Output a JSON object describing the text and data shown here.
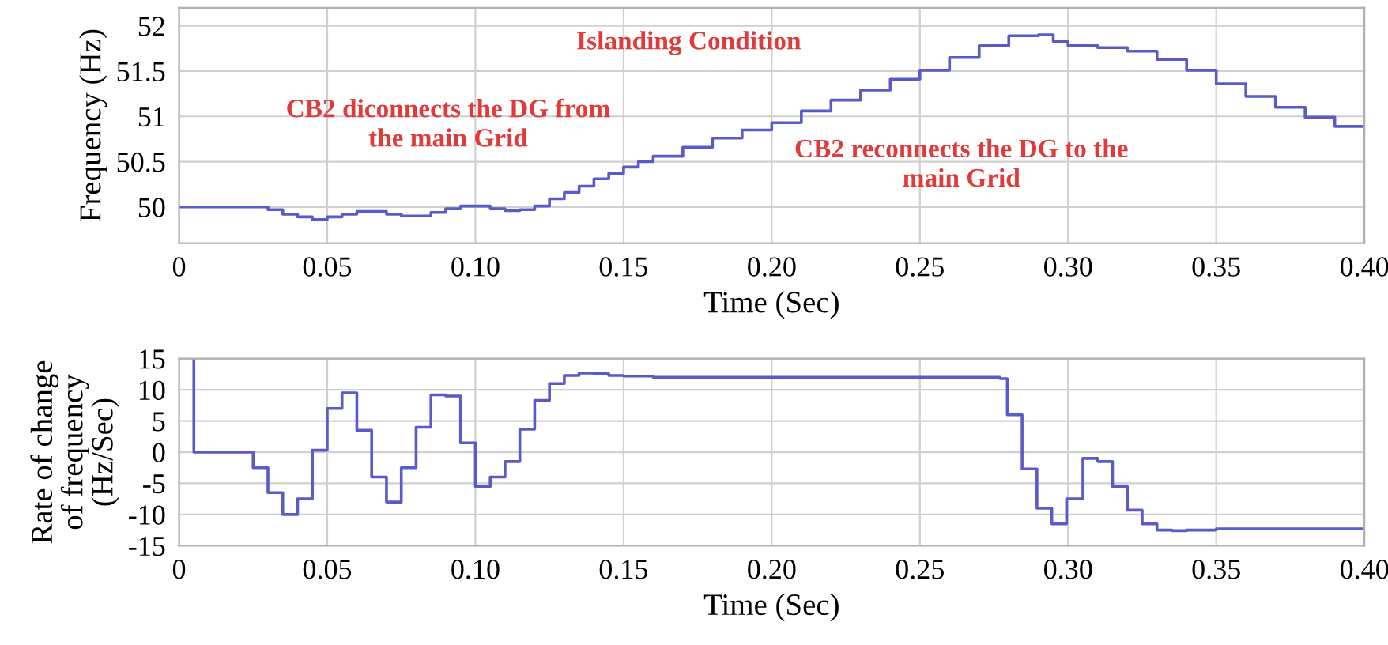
{
  "chart_data": [
    {
      "type": "step",
      "xlabel": "Time (Sec)",
      "ylabel": "Frequency (Hz)",
      "annotations": [
        "Islanding Condition",
        "CB2 diconnects the DG from\nthe main Grid",
        "CB2 reconnects the DG to the\nmain Grid"
      ],
      "series": [
        {
          "color": "#5a5ac8",
          "x": [
            0,
            0.025,
            0.03,
            0.035,
            0.04,
            0.045,
            0.05,
            0.055,
            0.06,
            0.065,
            0.07,
            0.075,
            0.08,
            0.085,
            0.09,
            0.095,
            0.1,
            0.105,
            0.11,
            0.115,
            0.12,
            0.125,
            0.13,
            0.135,
            0.14,
            0.145,
            0.15,
            0.155,
            0.16,
            0.17,
            0.18,
            0.19,
            0.2,
            0.21,
            0.22,
            0.23,
            0.24,
            0.25,
            0.26,
            0.27,
            0.28,
            0.29,
            0.295,
            0.3,
            0.31,
            0.32,
            0.33,
            0.34,
            0.35,
            0.36,
            0.37,
            0.38,
            0.39,
            0.4
          ],
          "values": [
            50.0,
            50.0,
            49.97,
            49.92,
            49.89,
            49.86,
            49.89,
            49.92,
            49.95,
            49.95,
            49.92,
            49.9,
            49.9,
            49.94,
            49.98,
            50.01,
            50.01,
            49.98,
            49.96,
            49.97,
            50.01,
            50.09,
            50.16,
            50.23,
            50.31,
            50.37,
            50.44,
            50.5,
            50.56,
            50.66,
            50.76,
            50.85,
            50.93,
            51.06,
            51.18,
            51.29,
            51.41,
            51.51,
            51.65,
            51.78,
            51.89,
            51.9,
            51.83,
            51.78,
            51.76,
            51.72,
            51.63,
            51.51,
            51.36,
            51.22,
            51.1,
            50.99,
            50.89,
            50.79
          ]
        }
      ],
      "xlim": [
        0,
        0.4
      ],
      "xticks": [
        0,
        0.05,
        {
          "value": 0.1,
          "label": "0.10"
        },
        0.15,
        {
          "value": 0.2,
          "label": "0.20"
        },
        0.25,
        {
          "value": 0.3,
          "label": "0.30"
        },
        0.35,
        {
          "value": 0.4,
          "label": "0.40"
        }
      ],
      "ylim": [
        49.6,
        52.2
      ],
      "yticks": [
        50,
        50.5,
        51,
        51.5,
        52
      ],
      "grid": true
    },
    {
      "type": "step",
      "xlabel": "Time (Sec)",
      "ylabel": "Rate of change\nof frequency\n(Hz/Sec)",
      "series": [
        {
          "color": "#5a5ac8",
          "x": [
            0.005,
            0.005,
            0.025,
            0.03,
            0.035,
            0.04,
            0.045,
            0.05,
            0.055,
            0.06,
            0.065,
            0.07,
            0.075,
            0.08,
            0.085,
            0.09,
            0.095,
            0.1,
            0.105,
            0.11,
            0.115,
            0.12,
            0.125,
            0.13,
            0.135,
            0.14,
            0.145,
            0.15,
            0.16,
            0.277,
            0.2795,
            0.2845,
            0.2895,
            0.2945,
            0.2995,
            0.305,
            0.31,
            0.315,
            0.32,
            0.325,
            0.33,
            0.335,
            0.34,
            0.35,
            0.4
          ],
          "values": [
            15,
            0,
            -2.5,
            -6.5,
            -10,
            -7.5,
            0.3,
            7,
            9.5,
            3.5,
            -4,
            -8,
            -2.5,
            4,
            9.2,
            9,
            1.5,
            -5.5,
            -4,
            -1.5,
            3.7,
            8.3,
            11,
            12.3,
            12.7,
            12.6,
            12.3,
            12.2,
            12.0,
            11.8,
            6,
            -2.7,
            -9,
            -11.5,
            -7.5,
            -1,
            -1.5,
            -5.5,
            -9.3,
            -11.5,
            -12.5,
            -12.6,
            -12.5,
            -12.3,
            -12.0
          ]
        }
      ],
      "xlim": [
        0,
        0.4
      ],
      "xticks": [
        0,
        0.05,
        {
          "value": 0.1,
          "label": "0.10"
        },
        0.15,
        {
          "value": 0.2,
          "label": "0.20"
        },
        0.25,
        {
          "value": 0.3,
          "label": "0.30"
        },
        0.35,
        {
          "value": 0.4,
          "label": "0.40"
        }
      ],
      "ylim": [
        -15,
        15
      ],
      "yticks": [
        15,
        10,
        5,
        0,
        -5,
        -10,
        -15
      ],
      "grid": true
    }
  ]
}
